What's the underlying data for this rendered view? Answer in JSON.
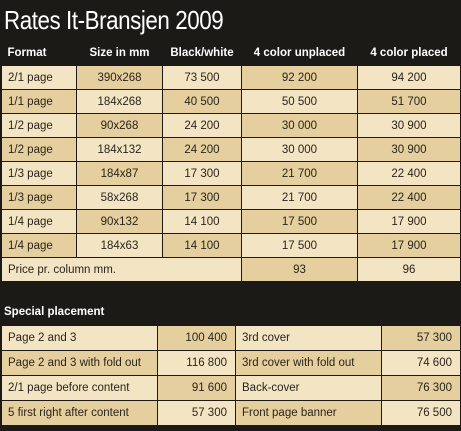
{
  "title": "Rates It-Bransjen 2009",
  "headers": [
    "Format",
    "Size in mm",
    "Black/white",
    "4 color unplaced",
    "4 color placed"
  ],
  "rows": [
    {
      "format": "2/1 page",
      "size": "390x268",
      "bw": "73 500",
      "unplaced": "92 200",
      "placed": "94 200"
    },
    {
      "format": "1/1 page",
      "size": "184x268",
      "bw": "40 500",
      "unplaced": "50 500",
      "placed": "51 700"
    },
    {
      "format": "1/2 page",
      "size": "90x268",
      "bw": "24 200",
      "unplaced": "30 000",
      "placed": "30 900"
    },
    {
      "format": "1/2 page",
      "size": "184x132",
      "bw": "24 200",
      "unplaced": "30 000",
      "placed": "30 900"
    },
    {
      "format": "1/3 page",
      "size": "184x87",
      "bw": "17 300",
      "unplaced": "21 700",
      "placed": "22 400"
    },
    {
      "format": "1/3 page",
      "size": "58x268",
      "bw": "17 300",
      "unplaced": "21 700",
      "placed": "22 400"
    },
    {
      "format": "1/4 page",
      "size": "90x132",
      "bw": "14 100",
      "unplaced": "17 500",
      "placed": "17 900"
    },
    {
      "format": "1/4 page",
      "size": "184x63",
      "bw": "14 100",
      "unplaced": "17 500",
      "placed": "17 900"
    }
  ],
  "column_price": {
    "label": "Price pr. column mm.",
    "unplaced": "93",
    "placed": "96"
  },
  "special_title": "Special placement",
  "special_rows": [
    {
      "left_label": "Page 2 and 3",
      "left_value": "100 400",
      "right_label": "3rd cover",
      "right_value": "57 300"
    },
    {
      "left_label": "Page 2 and 3 with fold out",
      "left_value": "116 800",
      "right_label": "3rd cover with fold out",
      "right_value": "74 600"
    },
    {
      "left_label": "2/1 page before content",
      "left_value": "91 600",
      "right_label": "Back-cover",
      "right_value": "76 300"
    },
    {
      "left_label": "5 first right after content",
      "left_value": "57 300",
      "right_label": "Front page banner",
      "right_value": "76 500"
    }
  ],
  "colors": {
    "background": "#1c1a17",
    "row_light": "#f3e4c4",
    "row_dark": "#e5cf9e",
    "header_text": "#ffffff"
  }
}
